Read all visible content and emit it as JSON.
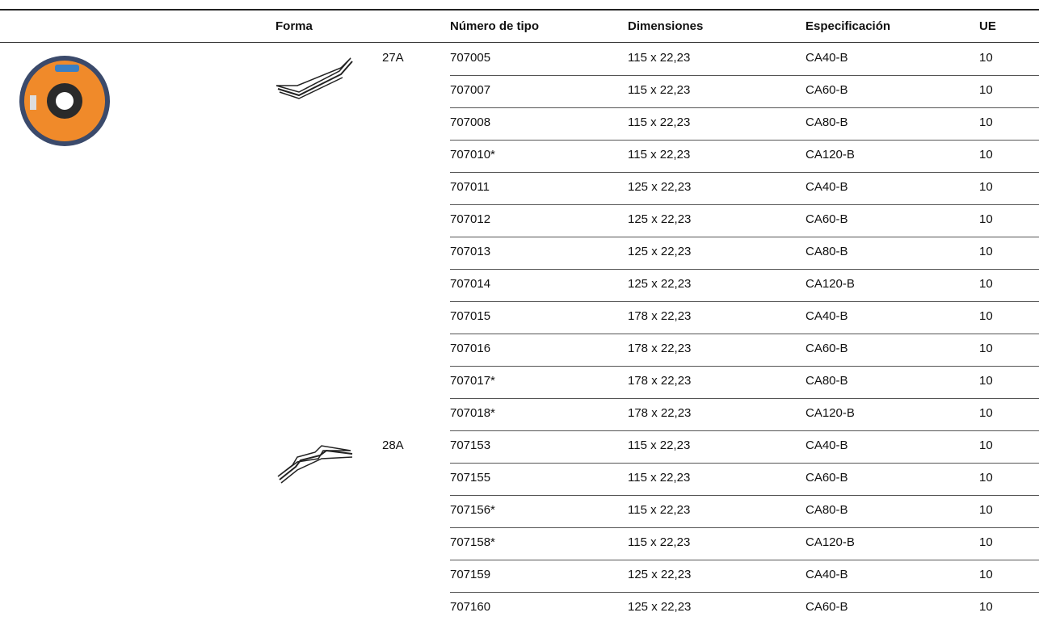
{
  "table": {
    "headers": [
      "Forma",
      "Número de tipo",
      "Dimensiones",
      "Especificación",
      "UE"
    ],
    "groups": [
      {
        "shape": "27A",
        "rows": [
          [
            "707005",
            "115 x 22,23",
            "CA40-B",
            "10"
          ],
          [
            "707007",
            "115 x 22,23",
            "CA60-B",
            "10"
          ],
          [
            "707008",
            "115 x 22,23",
            "CA80-B",
            "10"
          ],
          [
            "707010*",
            "115 x 22,23",
            "CA120-B",
            "10"
          ],
          [
            "707011",
            "125 x 22,23",
            "CA40-B",
            "10"
          ],
          [
            "707012",
            "125 x 22,23",
            "CA60-B",
            "10"
          ],
          [
            "707013",
            "125 x 22,23",
            "CA80-B",
            "10"
          ],
          [
            "707014",
            "125 x 22,23",
            "CA120-B",
            "10"
          ],
          [
            "707015",
            "178 x 22,23",
            "CA40-B",
            "10"
          ],
          [
            "707016",
            "178 x 22,23",
            "CA60-B",
            "10"
          ],
          [
            "707017*",
            "178 x 22,23",
            "CA80-B",
            "10"
          ],
          [
            "707018*",
            "178 x 22,23",
            "CA120-B",
            "10"
          ]
        ]
      },
      {
        "shape": "28A",
        "rows": [
          [
            "707153",
            "115 x 22,23",
            "CA40-B",
            "10"
          ],
          [
            "707155",
            "115 x 22,23",
            "CA60-B",
            "10"
          ],
          [
            "707156*",
            "115 x 22,23",
            "CA80-B",
            "10"
          ],
          [
            "707158*",
            "115 x 22,23",
            "CA120-B",
            "10"
          ],
          [
            "707159",
            "125 x 22,23",
            "CA40-B",
            "10"
          ],
          [
            "707160",
            "125 x 22,23",
            "CA60-B",
            "10"
          ]
        ]
      }
    ]
  }
}
